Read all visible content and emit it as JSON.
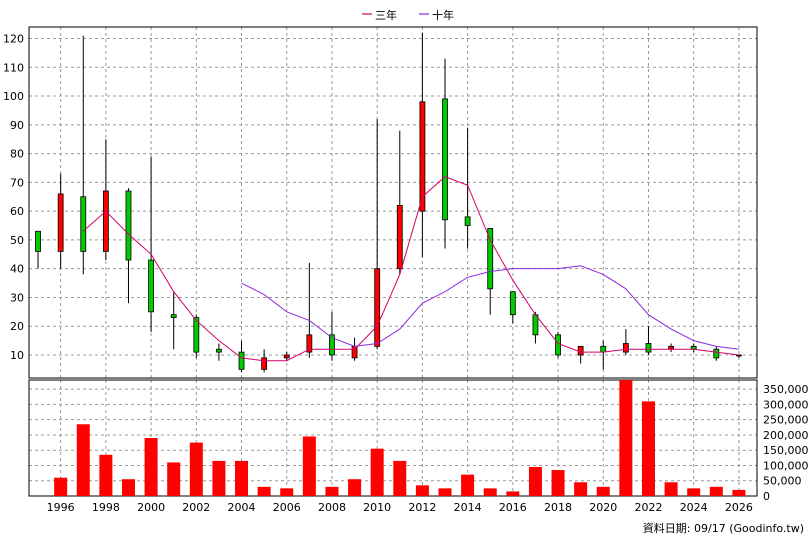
{
  "chart_data": {
    "type": "candlestick",
    "legend": [
      {
        "name": "三年",
        "color": "#d4006a"
      },
      {
        "name": "十年",
        "color": "#8a2be2"
      }
    ],
    "legend_position": "top-center",
    "price_axis": {
      "ylim": [
        2,
        124
      ],
      "ticks": [
        10,
        20,
        30,
        40,
        50,
        60,
        70,
        80,
        90,
        100,
        110,
        120
      ]
    },
    "volume_axis": {
      "ylim": [
        0,
        380000
      ],
      "ticks": [
        0,
        50000,
        100000,
        150000,
        200000,
        250000,
        300000,
        350000
      ],
      "tick_labels": [
        "0",
        "50,000",
        "100,000",
        "150,000",
        "200,000",
        "250,000",
        "300,000",
        "350,000"
      ]
    },
    "x_axis": {
      "xlim": [
        1994.6,
        2026.8
      ],
      "ticks": [
        1996,
        1998,
        2000,
        2002,
        2004,
        2006,
        2008,
        2010,
        2012,
        2014,
        2016,
        2018,
        2020,
        2022,
        2024,
        2026
      ]
    },
    "grid": true,
    "up_color": "#ff0000",
    "down_color": "#00cc00",
    "candles": [
      {
        "year": 1995,
        "open": 53,
        "high": 53,
        "low": 40,
        "close": 46
      },
      {
        "year": 1996,
        "open": 46,
        "high": 73,
        "low": 40,
        "close": 66
      },
      {
        "year": 1997,
        "open": 65,
        "high": 121,
        "low": 38,
        "close": 46
      },
      {
        "year": 1998,
        "open": 46,
        "high": 85,
        "low": 43,
        "close": 67
      },
      {
        "year": 1999,
        "open": 67,
        "high": 68,
        "low": 28,
        "close": 43
      },
      {
        "year": 2000,
        "open": 43,
        "high": 79,
        "low": 18,
        "close": 25
      },
      {
        "year": 2001,
        "open": 24,
        "high": 32,
        "low": 12,
        "close": 23
      },
      {
        "year": 2002,
        "open": 23,
        "high": 24,
        "low": 9,
        "close": 11
      },
      {
        "year": 2003,
        "open": 12,
        "high": 14,
        "low": 8,
        "close": 11
      },
      {
        "year": 2004,
        "open": 11,
        "high": 15,
        "low": 4,
        "close": 5
      },
      {
        "year": 2005,
        "open": 5,
        "high": 12,
        "low": 4,
        "close": 9
      },
      {
        "year": 2006,
        "open": 9,
        "high": 11,
        "low": 8,
        "close": 10
      },
      {
        "year": 2007,
        "open": 11,
        "high": 42,
        "low": 9,
        "close": 17
      },
      {
        "year": 2008,
        "open": 17,
        "high": 25,
        "low": 8,
        "close": 10
      },
      {
        "year": 2009,
        "open": 9,
        "high": 16,
        "low": 8,
        "close": 13
      },
      {
        "year": 2010,
        "open": 13,
        "high": 92,
        "low": 12,
        "close": 40
      },
      {
        "year": 2011,
        "open": 40,
        "high": 88,
        "low": 38,
        "close": 62
      },
      {
        "year": 2012,
        "open": 60,
        "high": 122,
        "low": 44,
        "close": 98
      },
      {
        "year": 2013,
        "open": 99,
        "high": 113,
        "low": 47,
        "close": 57
      },
      {
        "year": 2014,
        "open": 58,
        "high": 89,
        "low": 47,
        "close": 55
      },
      {
        "year": 2015,
        "open": 54,
        "high": 54,
        "low": 24,
        "close": 33
      },
      {
        "year": 2016,
        "open": 32,
        "high": 32,
        "low": 21,
        "close": 24
      },
      {
        "year": 2017,
        "open": 24,
        "high": 25,
        "low": 14,
        "close": 17
      },
      {
        "year": 2018,
        "open": 17,
        "high": 18,
        "low": 9,
        "close": 10
      },
      {
        "year": 2019,
        "open": 10,
        "high": 13,
        "low": 7,
        "close": 13
      },
      {
        "year": 2020,
        "open": 13,
        "high": 15,
        "low": 5,
        "close": 11
      },
      {
        "year": 2021,
        "open": 11,
        "high": 19,
        "low": 10,
        "close": 14
      },
      {
        "year": 2022,
        "open": 14,
        "high": 20,
        "low": 10,
        "close": 11
      },
      {
        "year": 2023,
        "open": 12,
        "high": 14,
        "low": 11,
        "close": 13
      },
      {
        "year": 2024,
        "open": 13,
        "high": 14,
        "low": 11,
        "close": 12
      },
      {
        "year": 2025,
        "open": 12,
        "high": 13,
        "low": 8,
        "close": 9
      },
      {
        "year": 2026,
        "open": 10,
        "high": 10,
        "low": 9,
        "close": 10
      }
    ],
    "ma3": {
      "name": "三年",
      "x": [
        1997,
        1998,
        1999,
        2000,
        2001,
        2002,
        2003,
        2004,
        2005,
        2006,
        2007,
        2008,
        2009,
        2010,
        2011,
        2012,
        2013,
        2014,
        2015,
        2016,
        2017,
        2018,
        2019,
        2020,
        2021,
        2022,
        2023,
        2024,
        2025,
        2026
      ],
      "values": [
        53,
        60,
        52,
        45,
        32,
        22,
        15,
        9,
        8,
        8,
        12,
        12,
        12,
        20,
        38,
        65,
        72,
        69,
        50,
        36,
        24,
        14,
        11,
        11,
        12,
        12,
        12,
        12,
        11,
        10
      ]
    },
    "ma10": {
      "name": "十年",
      "x": [
        2004,
        2005,
        2006,
        2007,
        2008,
        2009,
        2010,
        2011,
        2012,
        2013,
        2014,
        2015,
        2016,
        2017,
        2018,
        2019,
        2020,
        2021,
        2022,
        2023,
        2024,
        2025,
        2026
      ],
      "values": [
        35,
        31,
        25,
        22,
        16,
        13,
        14,
        19,
        28,
        32,
        37,
        39,
        40,
        40,
        40,
        41,
        38,
        33,
        24,
        19,
        15,
        13,
        12
      ]
    },
    "volume": {
      "x": [
        1996,
        1997,
        1998,
        1999,
        2000,
        2001,
        2002,
        2003,
        2004,
        2005,
        2006,
        2007,
        2008,
        2009,
        2010,
        2011,
        2012,
        2013,
        2014,
        2015,
        2016,
        2017,
        2018,
        2019,
        2020,
        2021,
        2022,
        2023,
        2024,
        2025,
        2026
      ],
      "values": [
        60000,
        235000,
        135000,
        55000,
        190000,
        110000,
        175000,
        115000,
        115000,
        30000,
        25000,
        195000,
        30000,
        55000,
        155000,
        115000,
        35000,
        25000,
        70000,
        25000,
        15000,
        95000,
        85000,
        45000,
        30000,
        380000,
        310000,
        45000,
        25000,
        30000,
        20000
      ],
      "color": "#ff0000"
    },
    "footer": "資料日期: 09/17  (Goodinfo.tw)"
  }
}
